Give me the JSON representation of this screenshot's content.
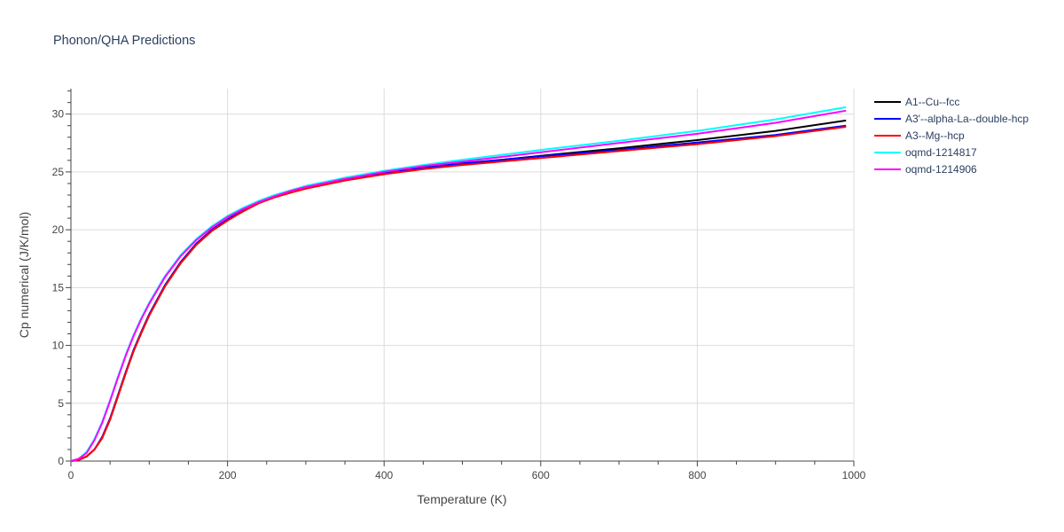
{
  "chart_data": {
    "type": "line",
    "title": "Phonon/QHA Predictions",
    "xlabel": "Temperature (K)",
    "ylabel": "Cp numerical (J/K/mol)",
    "xlim": [
      0,
      1000
    ],
    "ylim": [
      0,
      32.2
    ],
    "xticks": [
      0,
      200,
      400,
      600,
      800,
      1000
    ],
    "yticks": [
      0,
      5,
      10,
      15,
      20,
      25,
      30
    ],
    "grid": true,
    "legend_position": "top-right",
    "x": [
      0,
      10,
      20,
      30,
      40,
      50,
      60,
      70,
      80,
      90,
      100,
      120,
      140,
      160,
      180,
      200,
      220,
      240,
      260,
      280,
      300,
      350,
      400,
      450,
      500,
      600,
      700,
      800,
      900,
      990
    ],
    "series": [
      {
        "name": "A1--Cu--fcc",
        "color": "#000000",
        "values": [
          0,
          0.1,
          0.4,
          1.0,
          2.0,
          3.6,
          5.6,
          7.6,
          9.5,
          11.1,
          12.6,
          15.1,
          17.1,
          18.7,
          19.9,
          20.8,
          21.6,
          22.3,
          22.8,
          23.2,
          23.6,
          24.3,
          24.85,
          25.3,
          25.7,
          26.4,
          27.05,
          27.75,
          28.55,
          29.45
        ]
      },
      {
        "name": "A3'--alpha-La--double-hcp",
        "color": "#0000ff",
        "values": [
          0,
          0.1,
          0.4,
          1.0,
          2.1,
          3.7,
          5.7,
          7.7,
          9.6,
          11.2,
          12.7,
          15.2,
          17.2,
          18.8,
          20.0,
          20.9,
          21.7,
          22.35,
          22.85,
          23.3,
          23.65,
          24.35,
          24.9,
          25.35,
          25.75,
          26.35,
          26.9,
          27.55,
          28.2,
          29.0
        ]
      },
      {
        "name": "A3--Mg--hcp",
        "color": "#ff0000",
        "values": [
          0,
          0.1,
          0.4,
          1.0,
          2.0,
          3.6,
          5.6,
          7.6,
          9.5,
          11.1,
          12.6,
          15.1,
          17.1,
          18.7,
          19.9,
          20.8,
          21.6,
          22.3,
          22.8,
          23.2,
          23.55,
          24.25,
          24.8,
          25.25,
          25.6,
          26.2,
          26.8,
          27.4,
          28.1,
          28.9
        ]
      },
      {
        "name": "oqmd-1214817",
        "color": "#00ffff",
        "values": [
          0,
          0.2,
          0.8,
          1.9,
          3.4,
          5.3,
          7.3,
          9.2,
          10.9,
          12.4,
          13.7,
          16.0,
          17.8,
          19.2,
          20.3,
          21.2,
          21.9,
          22.5,
          23.0,
          23.4,
          23.8,
          24.5,
          25.1,
          25.6,
          26.05,
          26.9,
          27.7,
          28.55,
          29.55,
          30.6
        ]
      },
      {
        "name": "oqmd-1214906",
        "color": "#ff00ff",
        "values": [
          0,
          0.2,
          0.7,
          1.8,
          3.3,
          5.2,
          7.2,
          9.1,
          10.8,
          12.3,
          13.6,
          15.9,
          17.7,
          19.1,
          20.2,
          21.1,
          21.8,
          22.4,
          22.9,
          23.35,
          23.7,
          24.4,
          25.0,
          25.5,
          25.9,
          26.7,
          27.5,
          28.3,
          29.25,
          30.3
        ]
      }
    ]
  }
}
